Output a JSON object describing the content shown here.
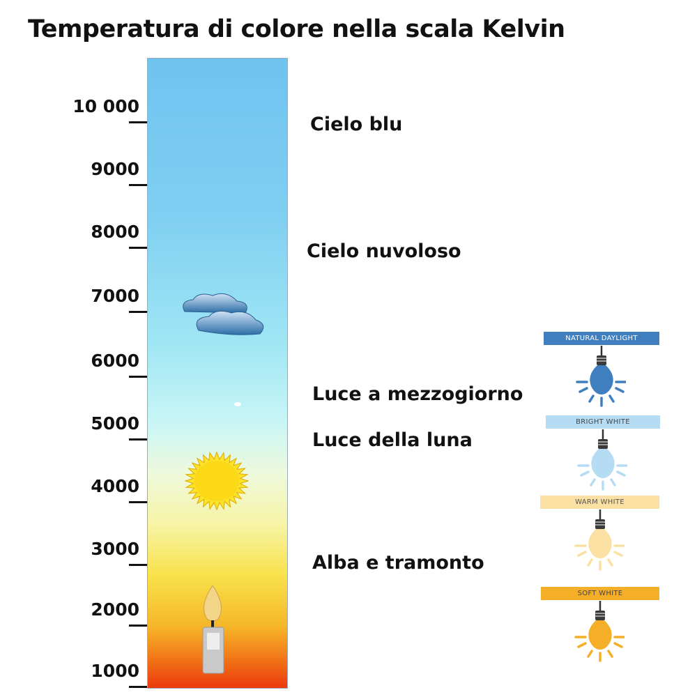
{
  "title": "Temperatura di colore nella scala Kelvin",
  "scale": {
    "ticks": [
      "10 000",
      "9000",
      "8000",
      "7000",
      "6000",
      "5000",
      "4000",
      "3000",
      "2000",
      "1000"
    ]
  },
  "descriptions": [
    "Cielo blu",
    "Cielo nuvoloso",
    "Luce a mezzogiorno",
    "Luce della luna",
    "Alba e tramonto"
  ],
  "icons": [
    "cloud-icon",
    "sun-icon",
    "candle-icon"
  ],
  "bulbs": [
    {
      "label": "NATURAL DAYLIGHT",
      "color": "#3f7fbf",
      "band": "#3f7fbf",
      "text": "#ffffff"
    },
    {
      "label": "BRIGHT WHITE",
      "color": "#b5dcf3",
      "band": "#b5dcf3",
      "text": "#444444"
    },
    {
      "label": "WARM WHITE",
      "color": "#fbe0a3",
      "band": "#fbe0a3",
      "text": "#555555"
    },
    {
      "label": "SOFT WHITE",
      "color": "#f5ae27",
      "band": "#f5ae27",
      "text": "#444444"
    }
  ]
}
